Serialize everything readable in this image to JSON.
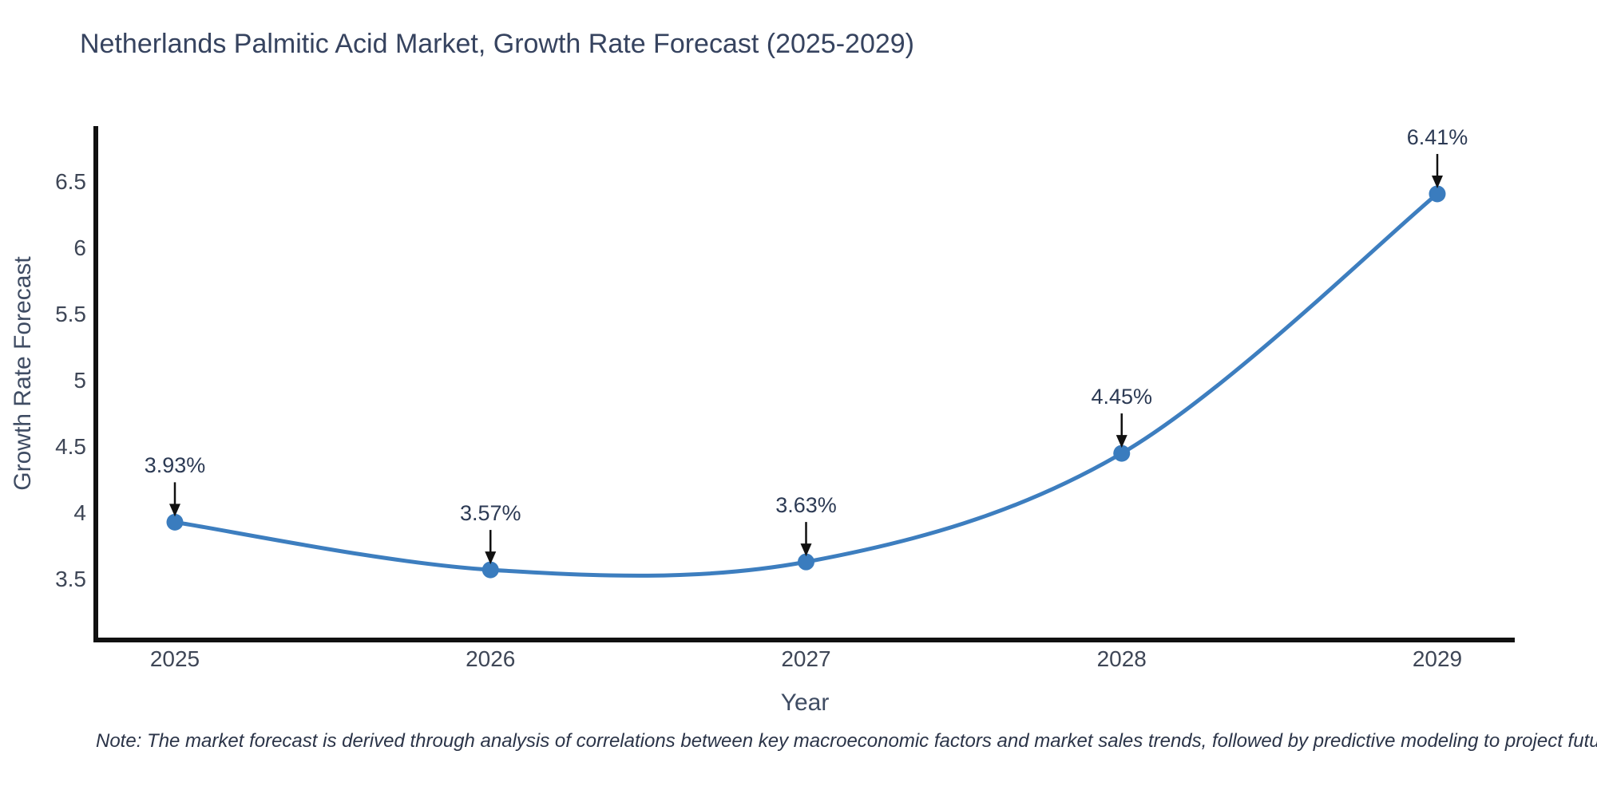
{
  "title": "Netherlands Palmitic Acid Market, Growth Rate Forecast (2025-2029)",
  "note": "Note: The market forecast is derived through analysis of correlations between key macroeconomic factors and market sales trends, followed by predictive modeling to project future sales",
  "chart_data": {
    "type": "line",
    "title": "Netherlands Palmitic Acid Market, Growth Rate Forecast (2025-2029)",
    "xlabel": "Year",
    "ylabel": "Growth Rate Forecast",
    "x": [
      2025,
      2026,
      2027,
      2028,
      2029
    ],
    "values": [
      3.93,
      3.57,
      3.63,
      4.45,
      6.41
    ],
    "point_labels": [
      "3.93%",
      "3.57%",
      "3.63%",
      "4.45%",
      "6.41%"
    ],
    "yticks": [
      3.5,
      4,
      4.5,
      5,
      5.5,
      6,
      6.5
    ],
    "ylim": [
      3.04,
      6.91
    ],
    "line_shape": "spline",
    "grid": false,
    "legend_position": "none",
    "colors": {
      "line": "#3d7ebf",
      "marker": "#3a7cbe",
      "axis": "#111111",
      "arrow": "#111111",
      "title_text": "#36435f",
      "tick_text": "#3e4656"
    }
  }
}
